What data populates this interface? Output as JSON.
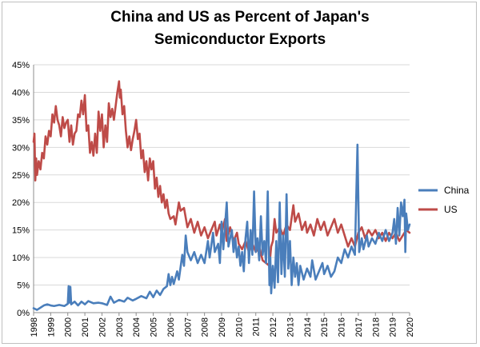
{
  "chart_data": {
    "type": "line",
    "title": [
      "China and US as Percent of Japan's",
      "Semiconductor Exports"
    ],
    "xlabel": "",
    "ylabel": "",
    "x_tick_labels": [
      "1998",
      "1999",
      "2000",
      "2001",
      "2002",
      "2003",
      "2004",
      "2005",
      "2006",
      "2007",
      "2008",
      "2009",
      "2010",
      "2011",
      "2012",
      "2013",
      "2014",
      "2015",
      "2016",
      "2017",
      "2018",
      "2019",
      "2020"
    ],
    "y_tick_labels": [
      "0%",
      "5%",
      "10%",
      "15%",
      "20%",
      "25%",
      "30%",
      "35%",
      "40%",
      "45%"
    ],
    "xlim": [
      1998,
      2020
    ],
    "ylim": [
      0,
      45
    ],
    "grid": "horizontal",
    "legend_position": "right",
    "series": [
      {
        "name": "China",
        "color": "#4a7ebb",
        "points": [
          [
            1998.0,
            0.8
          ],
          [
            1998.2,
            0.5
          ],
          [
            1998.4,
            0.9
          ],
          [
            1998.6,
            1.3
          ],
          [
            1998.8,
            1.5
          ],
          [
            1999.0,
            1.3
          ],
          [
            1999.2,
            1.2
          ],
          [
            1999.5,
            1.4
          ],
          [
            1999.8,
            1.2
          ],
          [
            2000.0,
            1.6
          ],
          [
            2000.05,
            4.8
          ],
          [
            2000.1,
            1.8
          ],
          [
            2000.15,
            4.7
          ],
          [
            2000.2,
            1.5
          ],
          [
            2000.4,
            2.0
          ],
          [
            2000.6,
            1.3
          ],
          [
            2000.8,
            2.0
          ],
          [
            2001.0,
            1.5
          ],
          [
            2001.2,
            2.1
          ],
          [
            2001.5,
            1.7
          ],
          [
            2001.8,
            1.8
          ],
          [
            2002.0,
            1.7
          ],
          [
            2002.3,
            1.4
          ],
          [
            2002.5,
            2.9
          ],
          [
            2002.7,
            1.8
          ],
          [
            2003.0,
            2.3
          ],
          [
            2003.3,
            2.0
          ],
          [
            2003.5,
            2.7
          ],
          [
            2003.8,
            2.2
          ],
          [
            2004.0,
            2.5
          ],
          [
            2004.3,
            3.0
          ],
          [
            2004.6,
            2.6
          ],
          [
            2004.8,
            3.8
          ],
          [
            2005.0,
            2.8
          ],
          [
            2005.2,
            4.0
          ],
          [
            2005.4,
            3.2
          ],
          [
            2005.6,
            4.3
          ],
          [
            2005.8,
            4.8
          ],
          [
            2005.9,
            7.0
          ],
          [
            2006.0,
            5.0
          ],
          [
            2006.1,
            6.5
          ],
          [
            2006.2,
            5.2
          ],
          [
            2006.4,
            7.5
          ],
          [
            2006.5,
            6.0
          ],
          [
            2006.7,
            10.5
          ],
          [
            2006.8,
            8.5
          ],
          [
            2006.9,
            14.0
          ],
          [
            2007.0,
            11.0
          ],
          [
            2007.2,
            9.5
          ],
          [
            2007.4,
            11.0
          ],
          [
            2007.6,
            9.0
          ],
          [
            2007.8,
            10.5
          ],
          [
            2008.0,
            9.0
          ],
          [
            2008.2,
            13.0
          ],
          [
            2008.3,
            10.0
          ],
          [
            2008.5,
            14.5
          ],
          [
            2008.6,
            11.0
          ],
          [
            2008.8,
            12.5
          ],
          [
            2008.9,
            9.0
          ],
          [
            2009.0,
            16.5
          ],
          [
            2009.1,
            11.5
          ],
          [
            2009.3,
            20.0
          ],
          [
            2009.4,
            12.0
          ],
          [
            2009.6,
            15.0
          ],
          [
            2009.7,
            11.0
          ],
          [
            2009.8,
            13.5
          ],
          [
            2009.9,
            10.0
          ],
          [
            2010.0,
            12.0
          ],
          [
            2010.1,
            8.5
          ],
          [
            2010.2,
            11.0
          ],
          [
            2010.3,
            7.5
          ],
          [
            2010.4,
            13.5
          ],
          [
            2010.5,
            16.5
          ],
          [
            2010.6,
            9.0
          ],
          [
            2010.7,
            15.0
          ],
          [
            2010.8,
            10.5
          ],
          [
            2010.9,
            22.0
          ],
          [
            2011.0,
            11.0
          ],
          [
            2011.1,
            13.5
          ],
          [
            2011.2,
            9.5
          ],
          [
            2011.3,
            17.5
          ],
          [
            2011.4,
            10.5
          ],
          [
            2011.5,
            13.0
          ],
          [
            2011.6,
            9.0
          ],
          [
            2011.7,
            22.0
          ],
          [
            2011.8,
            5.0
          ],
          [
            2011.85,
            10.0
          ],
          [
            2011.9,
            3.5
          ],
          [
            2012.0,
            8.5
          ],
          [
            2012.1,
            4.5
          ],
          [
            2012.2,
            13.0
          ],
          [
            2012.3,
            5.5
          ],
          [
            2012.4,
            20.0
          ],
          [
            2012.5,
            7.0
          ],
          [
            2012.6,
            14.0
          ],
          [
            2012.7,
            6.5
          ],
          [
            2012.8,
            21.5
          ],
          [
            2012.9,
            8.0
          ],
          [
            2013.0,
            13.0
          ],
          [
            2013.1,
            5.0
          ],
          [
            2013.2,
            10.0
          ],
          [
            2013.3,
            6.5
          ],
          [
            2013.4,
            9.0
          ],
          [
            2013.5,
            5.0
          ],
          [
            2013.6,
            8.5
          ],
          [
            2013.8,
            6.0
          ],
          [
            2014.0,
            8.0
          ],
          [
            2014.2,
            6.5
          ],
          [
            2014.3,
            9.5
          ],
          [
            2014.5,
            6.0
          ],
          [
            2014.7,
            7.5
          ],
          [
            2014.9,
            9.0
          ],
          [
            2015.0,
            7.0
          ],
          [
            2015.2,
            8.5
          ],
          [
            2015.4,
            6.5
          ],
          [
            2015.6,
            7.5
          ],
          [
            2015.8,
            10.0
          ],
          [
            2016.0,
            9.0
          ],
          [
            2016.2,
            11.5
          ],
          [
            2016.4,
            10.0
          ],
          [
            2016.6,
            12.0
          ],
          [
            2016.8,
            10.5
          ],
          [
            2016.95,
            30.5
          ],
          [
            2017.05,
            11.0
          ],
          [
            2017.2,
            13.5
          ],
          [
            2017.3,
            11.5
          ],
          [
            2017.5,
            14.0
          ],
          [
            2017.6,
            12.0
          ],
          [
            2017.8,
            13.5
          ],
          [
            2018.0,
            12.5
          ],
          [
            2018.2,
            14.5
          ],
          [
            2018.4,
            13.0
          ],
          [
            2018.6,
            15.0
          ],
          [
            2018.8,
            13.0
          ],
          [
            2019.0,
            14.5
          ],
          [
            2019.1,
            17.0
          ],
          [
            2019.2,
            12.5
          ],
          [
            2019.3,
            19.0
          ],
          [
            2019.4,
            14.0
          ],
          [
            2019.5,
            20.0
          ],
          [
            2019.6,
            17.5
          ],
          [
            2019.7,
            20.5
          ],
          [
            2019.75,
            11.0
          ],
          [
            2019.8,
            18.0
          ],
          [
            2019.9,
            15.0
          ],
          [
            2020.0,
            16.0
          ]
        ]
      },
      {
        "name": "US",
        "color": "#be4b48",
        "points": [
          [
            1998.0,
            31.0
          ],
          [
            1998.05,
            32.5
          ],
          [
            1998.1,
            24.0
          ],
          [
            1998.15,
            28.0
          ],
          [
            1998.2,
            25.0
          ],
          [
            1998.3,
            27.5
          ],
          [
            1998.4,
            26.0
          ],
          [
            1998.5,
            29.0
          ],
          [
            1998.6,
            28.0
          ],
          [
            1998.7,
            32.0
          ],
          [
            1998.8,
            30.5
          ],
          [
            1998.9,
            33.0
          ],
          [
            1999.0,
            32.0
          ],
          [
            1999.1,
            36.0
          ],
          [
            1999.2,
            34.5
          ],
          [
            1999.3,
            37.5
          ],
          [
            1999.4,
            35.0
          ],
          [
            1999.5,
            34.0
          ],
          [
            1999.6,
            32.0
          ],
          [
            1999.7,
            35.5
          ],
          [
            1999.8,
            33.5
          ],
          [
            1999.9,
            34.5
          ],
          [
            2000.0,
            35.0
          ],
          [
            2000.1,
            31.0
          ],
          [
            2000.2,
            34.0
          ],
          [
            2000.3,
            30.5
          ],
          [
            2000.4,
            32.5
          ],
          [
            2000.5,
            33.0
          ],
          [
            2000.6,
            36.0
          ],
          [
            2000.7,
            35.5
          ],
          [
            2000.8,
            38.5
          ],
          [
            2000.9,
            36.0
          ],
          [
            2001.0,
            39.5
          ],
          [
            2001.1,
            33.0
          ],
          [
            2001.2,
            34.0
          ],
          [
            2001.3,
            29.0
          ],
          [
            2001.4,
            31.0
          ],
          [
            2001.5,
            28.5
          ],
          [
            2001.6,
            32.5
          ],
          [
            2001.7,
            29.0
          ],
          [
            2001.8,
            36.5
          ],
          [
            2001.9,
            33.0
          ],
          [
            2002.0,
            36.0
          ],
          [
            2002.1,
            30.0
          ],
          [
            2002.2,
            34.0
          ],
          [
            2002.3,
            31.0
          ],
          [
            2002.4,
            38.0
          ],
          [
            2002.5,
            35.5
          ],
          [
            2002.6,
            37.0
          ],
          [
            2002.7,
            35.0
          ],
          [
            2002.8,
            37.5
          ],
          [
            2002.9,
            40.0
          ],
          [
            2003.0,
            42.0
          ],
          [
            2003.05,
            39.0
          ],
          [
            2003.1,
            40.5
          ],
          [
            2003.2,
            36.0
          ],
          [
            2003.3,
            37.5
          ],
          [
            2003.4,
            33.0
          ],
          [
            2003.5,
            30.0
          ],
          [
            2003.6,
            32.0
          ],
          [
            2003.7,
            29.5
          ],
          [
            2003.8,
            31.5
          ],
          [
            2003.9,
            33.0
          ],
          [
            2004.0,
            35.0
          ],
          [
            2004.1,
            31.5
          ],
          [
            2004.2,
            32.5
          ],
          [
            2004.3,
            28.0
          ],
          [
            2004.4,
            29.5
          ],
          [
            2004.5,
            25.5
          ],
          [
            2004.6,
            27.5
          ],
          [
            2004.7,
            24.0
          ],
          [
            2004.8,
            28.0
          ],
          [
            2004.9,
            26.0
          ],
          [
            2005.0,
            27.5
          ],
          [
            2005.1,
            22.5
          ],
          [
            2005.2,
            24.5
          ],
          [
            2005.3,
            21.0
          ],
          [
            2005.4,
            23.0
          ],
          [
            2005.5,
            20.0
          ],
          [
            2005.6,
            21.5
          ],
          [
            2005.7,
            19.0
          ],
          [
            2005.8,
            20.5
          ],
          [
            2005.9,
            18.0
          ],
          [
            2006.0,
            17.0
          ],
          [
            2006.2,
            17.5
          ],
          [
            2006.3,
            16.0
          ],
          [
            2006.5,
            20.0
          ],
          [
            2006.6,
            18.5
          ],
          [
            2006.8,
            19.0
          ],
          [
            2007.0,
            15.5
          ],
          [
            2007.2,
            17.0
          ],
          [
            2007.4,
            14.5
          ],
          [
            2007.6,
            16.5
          ],
          [
            2007.8,
            14.0
          ],
          [
            2008.0,
            15.5
          ],
          [
            2008.2,
            13.5
          ],
          [
            2008.4,
            15.0
          ],
          [
            2008.6,
            16.5
          ],
          [
            2008.7,
            14.0
          ],
          [
            2008.9,
            16.0
          ],
          [
            2009.0,
            14.5
          ],
          [
            2009.2,
            17.0
          ],
          [
            2009.3,
            13.0
          ],
          [
            2009.5,
            15.5
          ],
          [
            2009.7,
            13.0
          ],
          [
            2009.9,
            14.5
          ],
          [
            2010.0,
            12.5
          ],
          [
            2010.2,
            11.5
          ],
          [
            2010.4,
            13.0
          ],
          [
            2010.6,
            11.0
          ],
          [
            2010.8,
            12.5
          ],
          [
            2011.0,
            11.0
          ],
          [
            2011.2,
            12.0
          ],
          [
            2011.4,
            9.5
          ],
          [
            2011.6,
            9.0
          ],
          [
            2011.8,
            8.5
          ],
          [
            2011.9,
            12.0
          ],
          [
            2012.0,
            13.0
          ],
          [
            2012.1,
            17.0
          ],
          [
            2012.2,
            14.5
          ],
          [
            2012.4,
            15.5
          ],
          [
            2012.6,
            14.0
          ],
          [
            2012.8,
            16.0
          ],
          [
            2013.0,
            15.0
          ],
          [
            2013.2,
            19.5
          ],
          [
            2013.3,
            16.5
          ],
          [
            2013.5,
            18.0
          ],
          [
            2013.7,
            15.0
          ],
          [
            2013.9,
            16.5
          ],
          [
            2014.0,
            14.5
          ],
          [
            2014.2,
            16.0
          ],
          [
            2014.4,
            14.0
          ],
          [
            2014.6,
            17.0
          ],
          [
            2014.8,
            15.0
          ],
          [
            2015.0,
            16.5
          ],
          [
            2015.2,
            14.0
          ],
          [
            2015.4,
            15.5
          ],
          [
            2015.6,
            17.0
          ],
          [
            2015.8,
            14.5
          ],
          [
            2016.0,
            16.0
          ],
          [
            2016.2,
            14.0
          ],
          [
            2016.4,
            12.0
          ],
          [
            2016.6,
            13.5
          ],
          [
            2016.8,
            12.0
          ],
          [
            2017.0,
            14.5
          ],
          [
            2017.2,
            15.5
          ],
          [
            2017.4,
            13.5
          ],
          [
            2017.6,
            15.0
          ],
          [
            2017.8,
            14.0
          ],
          [
            2018.0,
            15.0
          ],
          [
            2018.2,
            13.5
          ],
          [
            2018.4,
            14.5
          ],
          [
            2018.6,
            13.0
          ],
          [
            2018.8,
            14.5
          ],
          [
            2019.0,
            13.5
          ],
          [
            2019.2,
            14.5
          ],
          [
            2019.4,
            13.0
          ],
          [
            2019.6,
            14.0
          ],
          [
            2019.8,
            15.0
          ],
          [
            2020.0,
            14.5
          ]
        ]
      }
    ]
  }
}
